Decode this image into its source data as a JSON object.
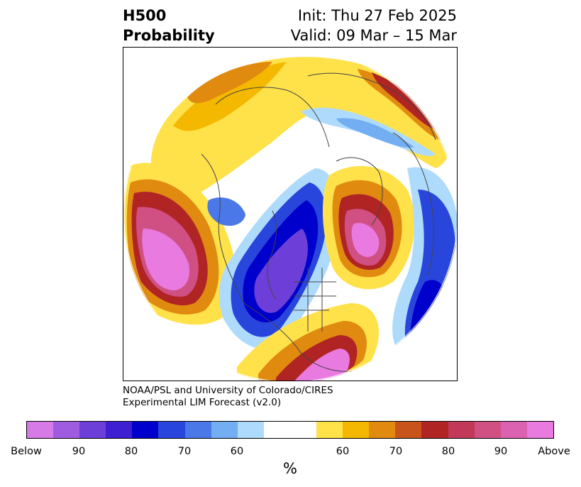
{
  "header": {
    "title_line1": "H500",
    "title_line2": "Probability",
    "init_line": "Init: Thu 27 Feb 2025",
    "valid_line": "Valid: 09 Mar – 15 Mar"
  },
  "credit": {
    "line1": "NOAA/PSL and University of Colorado/CIRES",
    "line2": "Experimental LIM Forecast (v2.0)"
  },
  "colorbar": {
    "colors": [
      "#d67ae8",
      "#9f5ce0",
      "#6d3fd8",
      "#3f1fd2",
      "#0000cc",
      "#2846dc",
      "#4b78e8",
      "#73aef2",
      "#aedbfb",
      "#ffffff",
      "#ffffff",
      "#ffe14a",
      "#f4b800",
      "#e08a10",
      "#c8541c",
      "#b02424",
      "#c23858",
      "#d05084",
      "#da62b0",
      "#e87ae0"
    ],
    "tick_labels": [
      "Below",
      "90",
      "80",
      "70",
      "60",
      "60",
      "70",
      "80",
      "90",
      "Above"
    ],
    "unit_label": "%"
  },
  "map": {
    "projection": "north-polar-stereographic",
    "field": "500 hPa height anomaly probability",
    "palette": {
      "above_60": "#ffe14a",
      "above_65": "#f4b800",
      "above_70": "#e08a10",
      "above_75": "#c8541c",
      "above_80": "#b02424",
      "above_85": "#c23858",
      "above_90": "#d05084",
      "above_95": "#da62b0",
      "above_max": "#e87ae0",
      "below_60": "#aedbfb",
      "below_65": "#73aef2",
      "below_70": "#4b78e8",
      "below_75": "#2846dc",
      "below_80": "#0000cc",
      "below_85": "#3f1fd2",
      "below_90": "#6d3fd8",
      "below_max": "#9f5ce0",
      "coastline": "#444444"
    }
  }
}
